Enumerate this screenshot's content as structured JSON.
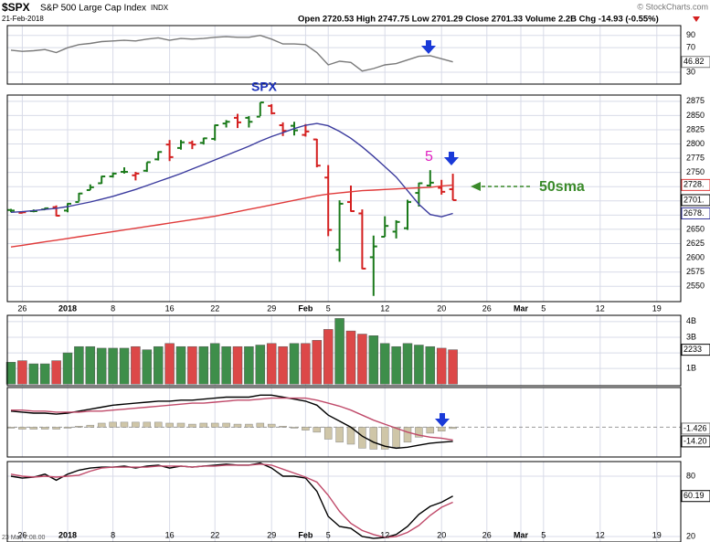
{
  "header": {
    "symbol": "$SPX",
    "name": "S&P 500 Large Cap Index",
    "exchange": "INDX",
    "date": "21-Feb-2018",
    "quote": "Open 2720.53  High 2747.75  Low 2701.29  Close 2701.33  Volume 2.2B  Chg -14.93 (-0.55%)",
    "copyright": "© StockCharts.com",
    "footer": "23 Mar Y:08.00"
  },
  "chart_data": [
    {
      "type": "line",
      "ylim": [
        10.7,
        106
      ],
      "yticks": [
        30,
        70,
        90
      ],
      "series": [
        {
          "color": "#7a7a7a",
          "last_label": "46.82",
          "values": [
            66,
            64,
            65,
            67,
            62,
            70,
            75,
            77,
            80,
            81,
            82,
            81,
            84,
            86,
            82,
            85,
            84,
            85,
            87,
            88,
            87,
            87,
            90,
            84,
            76,
            76,
            75,
            62,
            42,
            48,
            46,
            32,
            36,
            42,
            44,
            50,
            56,
            57,
            52,
            46.82,
            null,
            null,
            null,
            null,
            null,
            null,
            null,
            null,
            null,
            null,
            null,
            null,
            null,
            null,
            null,
            null,
            null,
            null,
            null,
            null
          ]
        }
      ]
    },
    {
      "type": "ohlc",
      "ylim": [
        2523,
        2886
      ],
      "yticks": [
        2550,
        2575,
        2600,
        2625,
        2650,
        2675,
        2700,
        2725,
        2750,
        2775,
        2800,
        2825,
        2850,
        2875
      ],
      "up_color": "#1b7a1b",
      "down_color": "#d42020",
      "close_label": "2701.",
      "annotations": [
        "SPX",
        "5",
        "50sma"
      ],
      "categories": [
        null,
        "26",
        null,
        null,
        null,
        "2018",
        null,
        null,
        null,
        "8",
        null,
        null,
        null,
        null,
        "16",
        null,
        null,
        null,
        "22",
        null,
        null,
        null,
        null,
        "29",
        null,
        null,
        "Feb",
        null,
        "5",
        null,
        null,
        null,
        null,
        "12",
        null,
        null,
        null,
        null,
        "20",
        null,
        null,
        null,
        "26",
        null,
        null,
        "Mar",
        null,
        "5",
        null,
        null,
        null,
        null,
        "12",
        null,
        null,
        null,
        null,
        "19",
        null,
        null
      ],
      "open": [
        2684,
        2679,
        2682,
        2685,
        2689,
        2683,
        2698,
        2719,
        2731,
        2743,
        2751,
        2745,
        2753,
        2773,
        2799,
        2793,
        2802,
        2802,
        2809,
        2836,
        2846,
        2846,
        2848,
        2867,
        2833,
        2832,
        2816,
        2808,
        2741,
        2614,
        2698,
        2678,
        2601,
        2637,
        2646,
        2652,
        2714,
        2727,
        2723,
        2720.53,
        null,
        null,
        null,
        null,
        null,
        null,
        null,
        null,
        null,
        null,
        null,
        null,
        null,
        null,
        null,
        null,
        null,
        null,
        null,
        null
      ],
      "high": [
        2686,
        2682,
        2685,
        2688,
        2692,
        2696,
        2714,
        2729,
        2744,
        2750,
        2759,
        2751,
        2768,
        2787,
        2807,
        2807,
        2806,
        2811,
        2834,
        2842,
        2853,
        2849,
        2873,
        2870,
        2838,
        2839,
        2835,
        2809,
        2763,
        2701,
        2727,
        2685,
        2639,
        2673,
        2666,
        2702,
        2732,
        2754,
        2737,
        2747.75,
        null,
        null,
        null,
        null,
        null,
        null,
        null,
        null,
        null,
        null,
        null,
        null,
        null,
        null,
        null,
        null,
        null,
        null,
        null,
        null
      ],
      "low": [
        2680,
        2678,
        2680,
        2684,
        2673,
        2680,
        2699,
        2719,
        2730,
        2741,
        2748,
        2736,
        2751,
        2771,
        2770,
        2790,
        2791,
        2799,
        2806,
        2829,
        2828,
        2829,
        2849,
        2852,
        2814,
        2815,
        2813,
        2759,
        2638,
        2593,
        2681,
        2580,
        2533,
        2637,
        2634,
        2649,
        2690,
        2725,
        2711,
        2701.29,
        null,
        null,
        null,
        null,
        null,
        null,
        null,
        null,
        null,
        null,
        null,
        null,
        null,
        null,
        null,
        null,
        null,
        null,
        null,
        null
      ],
      "close": [
        2683,
        2680,
        2682,
        2687,
        2674,
        2695,
        2713,
        2724,
        2743,
        2748,
        2751,
        2748,
        2768,
        2786,
        2777,
        2803,
        2799,
        2810,
        2833,
        2839,
        2838,
        2839,
        2873,
        2854,
        2823,
        2824,
        2822,
        2762,
        2649,
        2695,
        2682,
        2581,
        2620,
        2656,
        2663,
        2698,
        2731,
        2732,
        2716,
        2701.33,
        null,
        null,
        null,
        null,
        null,
        null,
        null,
        null,
        null,
        null,
        null,
        null,
        null,
        null,
        null,
        null,
        null,
        null,
        null,
        null
      ],
      "series": [
        {
          "color": "#3b3b9e",
          "last_label": "2678.",
          "values": [
            2680,
            2681,
            2683,
            2685,
            2687,
            2690,
            2694,
            2698,
            2703,
            2708,
            2714,
            2720,
            2727,
            2734,
            2741,
            2748,
            2756,
            2764,
            2772,
            2780,
            2788,
            2796,
            2805,
            2813,
            2820,
            2827,
            2833,
            2836,
            2832,
            2822,
            2810,
            2795,
            2778,
            2760,
            2742,
            2718,
            2694,
            2676,
            2672,
            2678,
            null,
            null,
            null,
            null,
            null,
            null,
            null,
            null,
            null,
            null,
            null,
            null,
            null,
            null,
            null,
            null,
            null,
            null,
            null,
            null
          ]
        },
        {
          "color": "#e03a3a",
          "last_label": "2728.",
          "values": [
            2619,
            2622,
            2625,
            2628,
            2631,
            2634,
            2637,
            2640,
            2643,
            2646,
            2649,
            2652,
            2655,
            2658,
            2661,
            2664,
            2667,
            2670,
            2673,
            2677,
            2681,
            2685,
            2689,
            2693,
            2697,
            2701,
            2705,
            2709,
            2712,
            2714,
            2716,
            2718,
            2719,
            2720,
            2721,
            2722,
            2723,
            2724,
            2726,
            2728,
            null,
            null,
            null,
            null,
            null,
            null,
            null,
            null,
            null,
            null,
            null,
            null,
            null,
            null,
            null,
            null,
            null,
            null,
            null,
            null
          ]
        }
      ]
    },
    {
      "type": "bar",
      "ylim": [
        -0.1,
        4.4
      ],
      "last_label": "2233",
      "yticks": [
        {
          "value": 1,
          "label": "1B"
        },
        {
          "value": 2,
          "label": "2B"
        },
        {
          "value": 3,
          "label": "3B"
        },
        {
          "value": 4,
          "label": "4B"
        }
      ],
      "values": [
        1.4,
        1.5,
        1.3,
        1.3,
        1.5,
        2.0,
        2.4,
        2.4,
        2.3,
        2.3,
        2.3,
        2.4,
        2.2,
        2.4,
        2.6,
        2.4,
        2.4,
        2.4,
        2.6,
        2.4,
        2.4,
        2.4,
        2.5,
        2.6,
        2.4,
        2.6,
        2.6,
        2.8,
        3.5,
        4.2,
        3.4,
        3.2,
        3.1,
        2.6,
        2.4,
        2.6,
        2.5,
        2.4,
        2.3,
        2.2,
        null,
        null,
        null,
        null,
        null,
        null,
        null,
        null,
        null,
        null,
        null,
        null,
        null,
        null,
        null,
        null,
        null,
        null,
        null,
        null
      ]
    },
    {
      "type": "macd",
      "ylim": [
        -29.8,
        39.6
      ],
      "histogram_label": "-1.426",
      "histogram": [
        -1,
        -2,
        -2,
        -2,
        -2,
        -1,
        1,
        2,
        4,
        5,
        5,
        5,
        5,
        5,
        4,
        4,
        3,
        4,
        4,
        4,
        3,
        3,
        4,
        3,
        1,
        -1,
        -3,
        -5,
        -12,
        -15,
        -17,
        -21,
        -22,
        -22,
        -20,
        -15,
        -10,
        -6,
        -4,
        -1.426,
        null,
        null,
        null,
        null,
        null,
        null,
        null,
        null,
        null,
        null,
        null,
        null,
        null,
        null,
        null,
        null,
        null,
        null,
        null,
        null
      ],
      "series": [
        {
          "color": "#000000",
          "last_label": "-14.20",
          "values": [
            16,
            15,
            14,
            14,
            13,
            14,
            16,
            18,
            20,
            22,
            23,
            24,
            25,
            26,
            26,
            27,
            27,
            28,
            29,
            30,
            30,
            30,
            32,
            32,
            30,
            28,
            26,
            22,
            12,
            6,
            0,
            -9,
            -15,
            -19,
            -21,
            -20,
            -18,
            -16,
            -15,
            -14.2,
            null,
            null,
            null,
            null,
            null,
            null,
            null,
            null,
            null,
            null,
            null,
            null,
            null,
            null,
            null,
            null,
            null,
            null,
            null,
            null
          ]
        },
        {
          "color": "#c04a6a",
          "values": [
            17,
            17,
            16,
            16,
            15,
            15,
            15,
            16,
            16,
            17,
            18,
            19,
            20,
            21,
            22,
            23,
            24,
            24,
            25,
            26,
            27,
            27,
            28,
            29,
            29,
            29,
            29,
            27,
            24,
            21,
            17,
            12,
            7,
            3,
            -1,
            -5,
            -8,
            -10,
            -11,
            -12.77,
            null,
            null,
            null,
            null,
            null,
            null,
            null,
            null,
            null,
            null,
            null,
            null,
            null,
            null,
            null,
            null,
            null,
            null,
            null,
            null
          ]
        }
      ]
    },
    {
      "type": "line",
      "ylim": [
        14.5,
        94.5
      ],
      "yticks": [
        20,
        80
      ],
      "series": [
        {
          "color": "#000000",
          "last_label": "60.19",
          "values": [
            80,
            78,
            79,
            82,
            76,
            82,
            86,
            88,
            89,
            89,
            90,
            88,
            90,
            91,
            88,
            90,
            89,
            90,
            91,
            92,
            91,
            91,
            93,
            88,
            80,
            80,
            78,
            65,
            40,
            30,
            28,
            20,
            18,
            19,
            22,
            30,
            42,
            50,
            54,
            60.19,
            null,
            null,
            null,
            null,
            null,
            null,
            null,
            null,
            null,
            null,
            null,
            null,
            null,
            null,
            null,
            null,
            null,
            null,
            null,
            null
          ]
        },
        {
          "color": "#c04a6a",
          "values": [
            82,
            80,
            79,
            80,
            79,
            80,
            81,
            85,
            88,
            89,
            89,
            89,
            89,
            90,
            90,
            90,
            89,
            90,
            90,
            91,
            91,
            91,
            92,
            91,
            87,
            83,
            79,
            74,
            61,
            45,
            33,
            26,
            22,
            19,
            20,
            24,
            31,
            41,
            49,
            54,
            null,
            null,
            null,
            null,
            null,
            null,
            null,
            null,
            null,
            null,
            null,
            null,
            null,
            null,
            null,
            null,
            null,
            null,
            null,
            null
          ]
        }
      ]
    }
  ]
}
